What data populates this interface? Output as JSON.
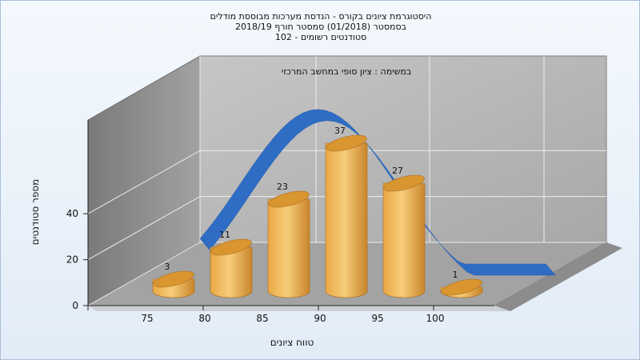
{
  "chart_data": {
    "type": "bar",
    "title_lines": [
      "היסטוגרמת ציונים בקורס - הנדסת מערכות מבוססת מודלים",
      "בסמסטר  (01/2018)  סמסטר חורף 2018/19",
      "סטודנטים רשומים - 102"
    ],
    "subtitle": "במשימה : ציון סופי במחשב המרכזי",
    "xlabel": "טווח ציונים",
    "ylabel": "מספר סטודנטים",
    "categories": [
      "75",
      "80",
      "85",
      "90",
      "95",
      "100"
    ],
    "values": [
      3,
      11,
      23,
      37,
      27,
      1
    ],
    "value_labels": [
      "3",
      "11",
      "23",
      "37",
      "27",
      "1"
    ],
    "y_ticks": [
      "0",
      "20",
      "40"
    ],
    "ylim": [
      0,
      40
    ],
    "grid": true,
    "trend_curve": "normal-distribution ribbon",
    "colors": {
      "bar_body": "#d9952f",
      "bar_highlight": "#f7cd7a",
      "curve": "#2f6dc4",
      "back_wall": "#b8b8b8",
      "left_wall": "#8a8a8a",
      "floor": "#9e9e9e"
    }
  }
}
